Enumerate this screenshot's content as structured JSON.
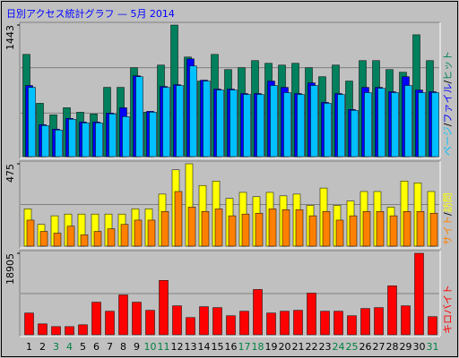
{
  "title": "日別アクセス統計グラフ — 5月 2014",
  "legend_separator": "/",
  "chart_data": [
    {
      "type": "bar",
      "ylim": [
        0,
        1443
      ],
      "yticks": [
        1443
      ],
      "series": [
        {
          "name": "ヒット",
          "color": "#00805c",
          "values": [
            1121,
            585,
            458,
            536,
            487,
            468,
            760,
            760,
            975,
            487,
            1004,
            1443,
            1092,
            829,
            1121,
            955,
            975,
            1053,
            1024,
            1004,
            1024,
            975,
            877,
            1004,
            829,
            1053,
            1053,
            955,
            926,
            1336,
            1053
          ]
        },
        {
          "name": "ファイル",
          "color": "#0000ff",
          "values": [
            780,
            351,
            302,
            420,
            380,
            380,
            478,
            536,
            887,
            497,
            770,
            790,
            1072,
            839,
            741,
            741,
            692,
            692,
            829,
            760,
            692,
            809,
            595,
            692,
            517,
            760,
            760,
            712,
            877,
            731,
            712
          ]
        },
        {
          "name": "ページ",
          "color": "#00c0ff",
          "values": [
            760,
            341,
            292,
            410,
            370,
            370,
            468,
            439,
            877,
            487,
            760,
            780,
            994,
            829,
            731,
            731,
            682,
            682,
            780,
            702,
            682,
            780,
            585,
            682,
            507,
            702,
            750,
            702,
            780,
            702,
            702
          ]
        }
      ]
    },
    {
      "type": "bar",
      "ylim": [
        0,
        475
      ],
      "yticks": [
        475
      ],
      "series": [
        {
          "name": "訪問",
          "color": "#ffff00",
          "values": [
            215,
            125,
            175,
            185,
            185,
            185,
            185,
            185,
            215,
            215,
            300,
            440,
            475,
            350,
            375,
            275,
            310,
            285,
            310,
            290,
            300,
            235,
            335,
            235,
            260,
            315,
            315,
            225,
            375,
            365,
            315
          ]
        },
        {
          "name": "サイト",
          "color": "#ff8000",
          "values": [
            150,
            85,
            75,
            115,
            65,
            85,
            100,
            125,
            150,
            150,
            200,
            315,
            225,
            200,
            215,
            175,
            185,
            190,
            215,
            210,
            210,
            175,
            200,
            150,
            175,
            200,
            200,
            175,
            200,
            200,
            190
          ]
        }
      ]
    },
    {
      "type": "bar",
      "ylim": [
        0,
        18905
      ],
      "yticks": [
        18905
      ],
      "categories": [
        "1",
        "2",
        "3",
        "4",
        "5",
        "6",
        "7",
        "8",
        "9",
        "10",
        "11",
        "12",
        "13",
        "14",
        "15",
        "16",
        "17",
        "18",
        "19",
        "20",
        "21",
        "22",
        "23",
        "24",
        "25",
        "26",
        "27",
        "28",
        "29",
        "30",
        "31"
      ],
      "category_colors": [
        "#000000",
        "#000000",
        "#008040",
        "#008040",
        "#000000",
        "#000000",
        "#000000",
        "#000000",
        "#000000",
        "#008040",
        "#008040",
        "#000000",
        "#000000",
        "#000000",
        "#000000",
        "#000000",
        "#008040",
        "#008040",
        "#000000",
        "#000000",
        "#000000",
        "#000000",
        "#000000",
        "#008040",
        "#008040",
        "#000000",
        "#000000",
        "#000000",
        "#000000",
        "#000000",
        "#008040"
      ],
      "series": [
        {
          "name": "キロバイト",
          "color": "#ff0000",
          "values": [
            5041,
            2521,
            1890,
            1890,
            2311,
            7562,
            5461,
            9242,
            7562,
            5671,
            12603,
            6722,
            3991,
            6512,
            6302,
            4411,
            5461,
            10503,
            5041,
            5461,
            5671,
            9662,
            5461,
            5461,
            4411,
            6092,
            6302,
            11343,
            6722,
            18905,
            4201
          ]
        }
      ]
    }
  ]
}
